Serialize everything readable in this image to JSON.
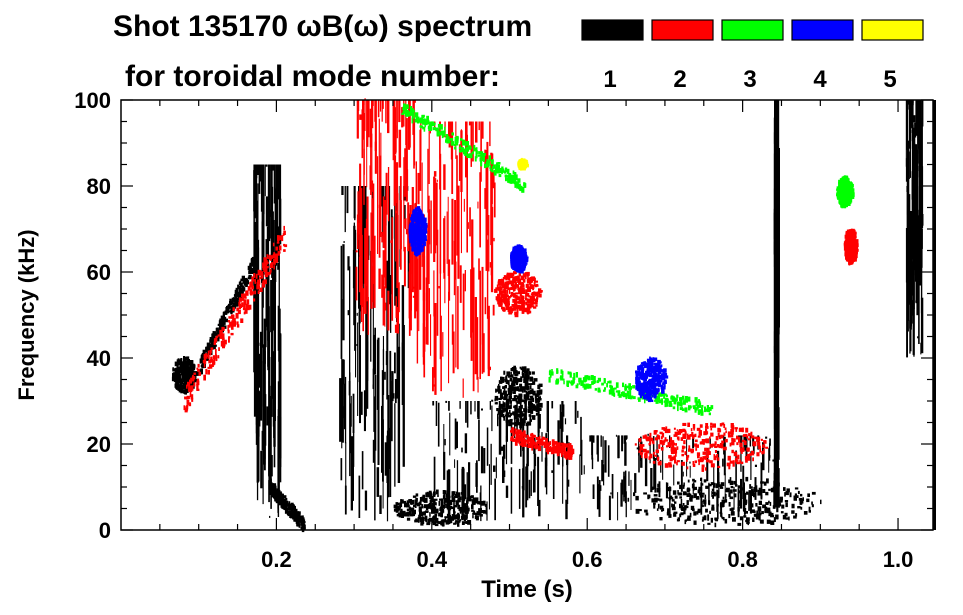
{
  "chart_data": {
    "type": "heatmap",
    "title_line1": "Shot 135170 ωB(ω) spectrum",
    "title_line2": "for toroidal mode number:",
    "xlabel": "Time (s)",
    "ylabel": "Frequency (kHz)",
    "xlim": [
      0.0,
      1.045
    ],
    "ylim": [
      0,
      100
    ],
    "x_ticks": [
      {
        "value": 0.2,
        "label": "0.2"
      },
      {
        "value": 0.4,
        "label": "0.4"
      },
      {
        "value": 0.6,
        "label": "0.6"
      },
      {
        "value": 0.8,
        "label": "0.8"
      },
      {
        "value": 1.0,
        "label": "1.0"
      }
    ],
    "y_ticks": [
      {
        "value": 0,
        "label": "0"
      },
      {
        "value": 20,
        "label": "20"
      },
      {
        "value": 40,
        "label": "40"
      },
      {
        "value": 60,
        "label": "60"
      },
      {
        "value": 80,
        "label": "80"
      },
      {
        "value": 100,
        "label": "100"
      }
    ],
    "legend": [
      {
        "n": 1,
        "label": "1",
        "color": "#000000"
      },
      {
        "n": 2,
        "label": "2",
        "color": "#ff0000"
      },
      {
        "n": 3,
        "label": "3",
        "color": "#00ff00"
      },
      {
        "n": 4,
        "label": "4",
        "color": "#0000ff"
      },
      {
        "n": 5,
        "label": "5",
        "color": "#ffff00"
      }
    ],
    "features": [
      {
        "mode": 1,
        "kind": "blob",
        "t": [
          0.065,
          0.095
        ],
        "f": [
          32,
          40
        ]
      },
      {
        "mode": 1,
        "kind": "chirp",
        "t": [
          0.1,
          0.17
        ],
        "f": [
          38,
          62
        ]
      },
      {
        "mode": 1,
        "kind": "band",
        "t": [
          0.17,
          0.205
        ],
        "f": [
          2,
          85
        ]
      },
      {
        "mode": 1,
        "kind": "chirp",
        "t": [
          0.19,
          0.235
        ],
        "f": [
          10,
          1
        ]
      },
      {
        "mode": 1,
        "kind": "band",
        "t": [
          0.28,
          0.37
        ],
        "f": [
          2,
          80
        ]
      },
      {
        "mode": 1,
        "kind": "blob",
        "t": [
          0.35,
          0.47
        ],
        "f": [
          1,
          9
        ]
      },
      {
        "mode": 1,
        "kind": "blob",
        "t": [
          0.48,
          0.54
        ],
        "f": [
          24,
          38
        ]
      },
      {
        "mode": 1,
        "kind": "band",
        "t": [
          0.4,
          0.6
        ],
        "f": [
          2,
          30
        ]
      },
      {
        "mode": 1,
        "kind": "blob",
        "t": [
          0.65,
          0.9
        ],
        "f": [
          1,
          12
        ]
      },
      {
        "mode": 1,
        "kind": "band",
        "t": [
          0.6,
          0.85
        ],
        "f": [
          2,
          22
        ]
      },
      {
        "mode": 1,
        "kind": "band",
        "t": [
          0.84,
          0.845
        ],
        "f": [
          3,
          100
        ]
      },
      {
        "mode": 1,
        "kind": "band",
        "t": [
          1.01,
          1.03
        ],
        "f": [
          40,
          100
        ]
      },
      {
        "mode": 2,
        "kind": "chirp",
        "t": [
          0.08,
          0.21
        ],
        "f": [
          30,
          68
        ]
      },
      {
        "mode": 2,
        "kind": "band",
        "t": [
          0.3,
          0.38
        ],
        "f": [
          45,
          100
        ]
      },
      {
        "mode": 2,
        "kind": "band",
        "t": [
          0.38,
          0.48
        ],
        "f": [
          30,
          95
        ]
      },
      {
        "mode": 2,
        "kind": "blob",
        "t": [
          0.48,
          0.54
        ],
        "f": [
          50,
          60
        ]
      },
      {
        "mode": 2,
        "kind": "chirp",
        "t": [
          0.5,
          0.58
        ],
        "f": [
          22,
          18
        ]
      },
      {
        "mode": 2,
        "kind": "blob",
        "t": [
          0.66,
          0.83
        ],
        "f": [
          14,
          25
        ]
      },
      {
        "mode": 2,
        "kind": "blob",
        "t": [
          0.93,
          0.945
        ],
        "f": [
          62,
          70
        ]
      },
      {
        "mode": 3,
        "kind": "chirp",
        "t": [
          0.36,
          0.52
        ],
        "f": [
          98,
          80
        ]
      },
      {
        "mode": 3,
        "kind": "chirp",
        "t": [
          0.55,
          0.76
        ],
        "f": [
          36,
          28
        ]
      },
      {
        "mode": 3,
        "kind": "blob",
        "t": [
          0.92,
          0.94
        ],
        "f": [
          75,
          82
        ]
      },
      {
        "mode": 4,
        "kind": "blob",
        "t": [
          0.37,
          0.39
        ],
        "f": [
          64,
          75
        ]
      },
      {
        "mode": 4,
        "kind": "blob",
        "t": [
          0.5,
          0.52
        ],
        "f": [
          60,
          66
        ]
      },
      {
        "mode": 4,
        "kind": "blob",
        "t": [
          0.66,
          0.7
        ],
        "f": [
          30,
          40
        ]
      },
      {
        "mode": 5,
        "kind": "blob",
        "t": [
          0.51,
          0.52
        ],
        "f": [
          84,
          86
        ]
      }
    ]
  }
}
